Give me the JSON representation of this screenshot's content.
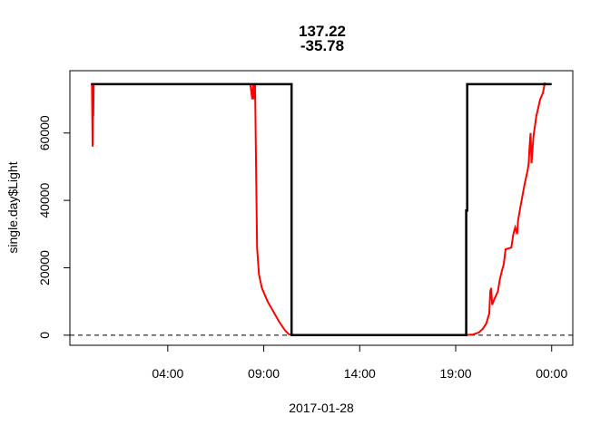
{
  "chart_data": {
    "type": "line",
    "title": [
      "137.22",
      "-35.78"
    ],
    "xlabel": "2017-01-28",
    "ylabel": "single.day$Light",
    "x_unit": "hours since 2017-01-28 00:00",
    "xlim": [
      -1.1,
      25.1
    ],
    "ylim": [
      -3000,
      78500
    ],
    "x_ticks": [
      {
        "value": 4,
        "label": "04:00"
      },
      {
        "value": 9,
        "label": "09:00"
      },
      {
        "value": 14,
        "label": "14:00"
      },
      {
        "value": 19,
        "label": "19:00"
      },
      {
        "value": 24,
        "label": "00:00"
      }
    ],
    "y_ticks": [
      {
        "value": 0,
        "label": "0"
      },
      {
        "value": 20000,
        "label": "20000"
      },
      {
        "value": 40000,
        "label": "40000"
      },
      {
        "value": 60000,
        "label": "60000"
      }
    ],
    "reference_line": {
      "y": 0,
      "style": "dashed",
      "color": "#000000"
    },
    "grid": false,
    "series": [
      {
        "color": "#ff0000",
        "width": 2,
        "points": [
          [
            0.0,
            74500
          ],
          [
            0.05,
            74500
          ],
          [
            0.08,
            56000
          ],
          [
            0.1,
            68000
          ],
          [
            0.12,
            65000
          ],
          [
            0.14,
            74500
          ],
          [
            0.2,
            74500
          ],
          [
            8.3,
            74500
          ],
          [
            8.4,
            70000
          ],
          [
            8.45,
            74500
          ],
          [
            8.5,
            70000
          ],
          [
            8.55,
            74500
          ],
          [
            8.6,
            50000
          ],
          [
            8.65,
            26000
          ],
          [
            8.75,
            18000
          ],
          [
            8.9,
            14000
          ],
          [
            9.2,
            10000
          ],
          [
            9.5,
            7000
          ],
          [
            9.8,
            4000
          ],
          [
            10.1,
            1500
          ],
          [
            10.3,
            300
          ],
          [
            10.5,
            0
          ],
          [
            19.5,
            0
          ],
          [
            19.9,
            200
          ],
          [
            20.2,
            800
          ],
          [
            20.4,
            1800
          ],
          [
            20.6,
            3500
          ],
          [
            20.75,
            6500
          ],
          [
            20.8,
            13000
          ],
          [
            20.85,
            14000
          ],
          [
            20.9,
            9000
          ],
          [
            21.0,
            10500
          ],
          [
            21.2,
            13000
          ],
          [
            21.3,
            16500
          ],
          [
            21.4,
            19000
          ],
          [
            21.5,
            21000
          ],
          [
            21.6,
            25500
          ],
          [
            21.9,
            26000
          ],
          [
            22.0,
            30000
          ],
          [
            22.1,
            32000
          ],
          [
            22.2,
            30000
          ],
          [
            22.25,
            34000
          ],
          [
            22.35,
            37500
          ],
          [
            22.5,
            42000
          ],
          [
            22.6,
            45000
          ],
          [
            22.75,
            49000
          ],
          [
            22.8,
            51000
          ],
          [
            22.85,
            56000
          ],
          [
            22.9,
            60000
          ],
          [
            22.95,
            51000
          ],
          [
            23.05,
            59000
          ],
          [
            23.2,
            65000
          ],
          [
            23.4,
            70000
          ],
          [
            23.55,
            72000
          ],
          [
            23.65,
            75000
          ]
        ]
      },
      {
        "color": "#000000",
        "width": 2.5,
        "points": [
          [
            0.0,
            74500
          ],
          [
            10.45,
            74500
          ],
          [
            10.45,
            0
          ],
          [
            19.55,
            0
          ],
          [
            19.55,
            37000
          ],
          [
            19.6,
            37000
          ],
          [
            19.6,
            74500
          ],
          [
            24.0,
            74500
          ]
        ]
      }
    ]
  }
}
